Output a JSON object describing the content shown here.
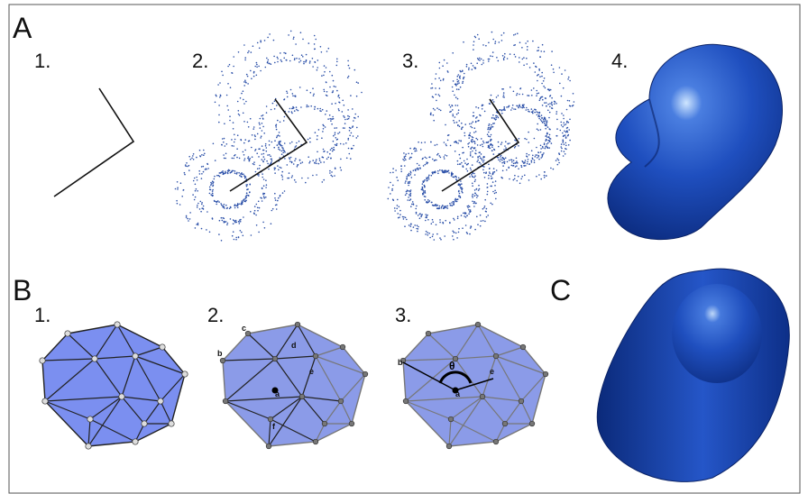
{
  "panels": [
    {
      "label": "A",
      "steps": [
        "1.",
        "2.",
        "3.",
        "4."
      ]
    },
    {
      "label": "B",
      "steps": [
        "1.",
        "2.",
        "3."
      ],
      "points": [
        "a",
        "b",
        "c",
        "d",
        "e",
        "f"
      ],
      "angle": "θ"
    },
    {
      "label": "C"
    }
  ]
}
